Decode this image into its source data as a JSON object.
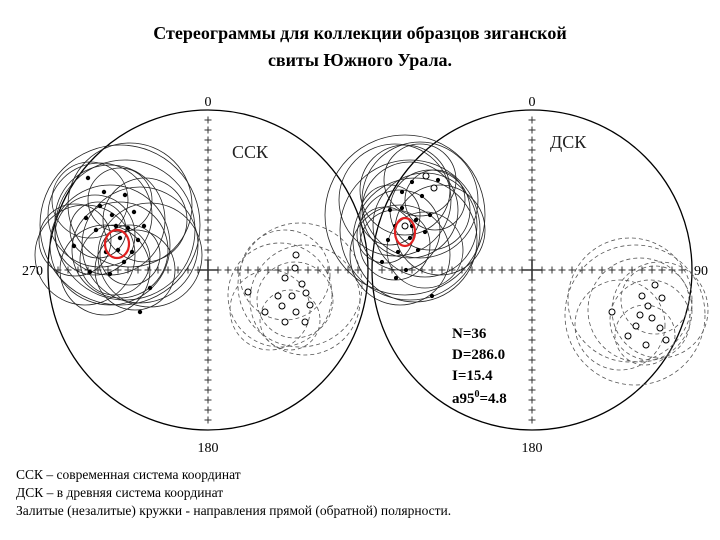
{
  "title": {
    "line1": "Стереограммы  для коллекции образцов зиганской",
    "line2": "свиты Южного Урала."
  },
  "stereonets": [
    {
      "system": "ССК",
      "labels": {
        "north": "0",
        "south": "180",
        "west": "270"
      }
    },
    {
      "system": "ДСК",
      "labels": {
        "north": "0",
        "south": "180",
        "east": "90"
      }
    }
  ],
  "stats": {
    "n": "N=36",
    "d": "D=286.0",
    "i": "I=15.4",
    "a95_prefix": "a95",
    "a95_sup": "0",
    "a95_suffix": "=4.8"
  },
  "legend": {
    "line1": "ССК – современная система координат",
    "line2": "ДСК – в древняя система координат",
    "line3": "Залитые (незалитые) кружки - направления прямой (обратной) полярности."
  },
  "colors": {
    "ink": "#000000",
    "grid": "#333333",
    "dashed": "#555555",
    "mean_marker": "#e02020"
  }
}
